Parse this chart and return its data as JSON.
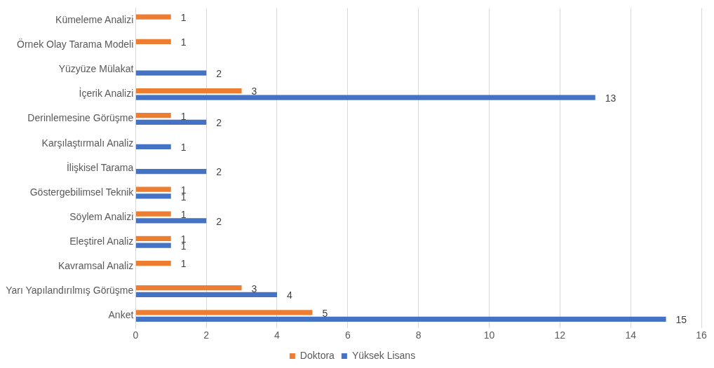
{
  "chart_data": {
    "type": "bar",
    "orientation": "horizontal",
    "categories": [
      "Kümeleme Analizi",
      "Örnek Olay Tarama Modeli",
      "Yüzyüze Mülakat",
      "İçerik Analizi",
      "Derinlemesine Görüşme",
      "Karşılaştırmalı Analiz",
      "İlişkisel Tarama",
      "Göstergebilimsel Teknik",
      "Söylem Analizi",
      "Eleştirel Analiz",
      "Kavramsal Analiz",
      "Yarı Yapılandırılmış Görüşme",
      "Anket"
    ],
    "series": [
      {
        "name": "Doktora",
        "color": "#ed7d31",
        "values": [
          1,
          1,
          null,
          3,
          1,
          null,
          null,
          1,
          1,
          1,
          1,
          3,
          5
        ]
      },
      {
        "name": "Yüksek Lisans",
        "color": "#4472c4",
        "values": [
          null,
          null,
          2,
          13,
          2,
          1,
          2,
          1,
          2,
          1,
          null,
          4,
          15
        ]
      }
    ],
    "xlim": [
      0,
      16
    ],
    "xticks": [
      0,
      2,
      4,
      6,
      8,
      10,
      12,
      14,
      16
    ],
    "grid": "x",
    "legend": "bottom",
    "data_labels": true
  }
}
